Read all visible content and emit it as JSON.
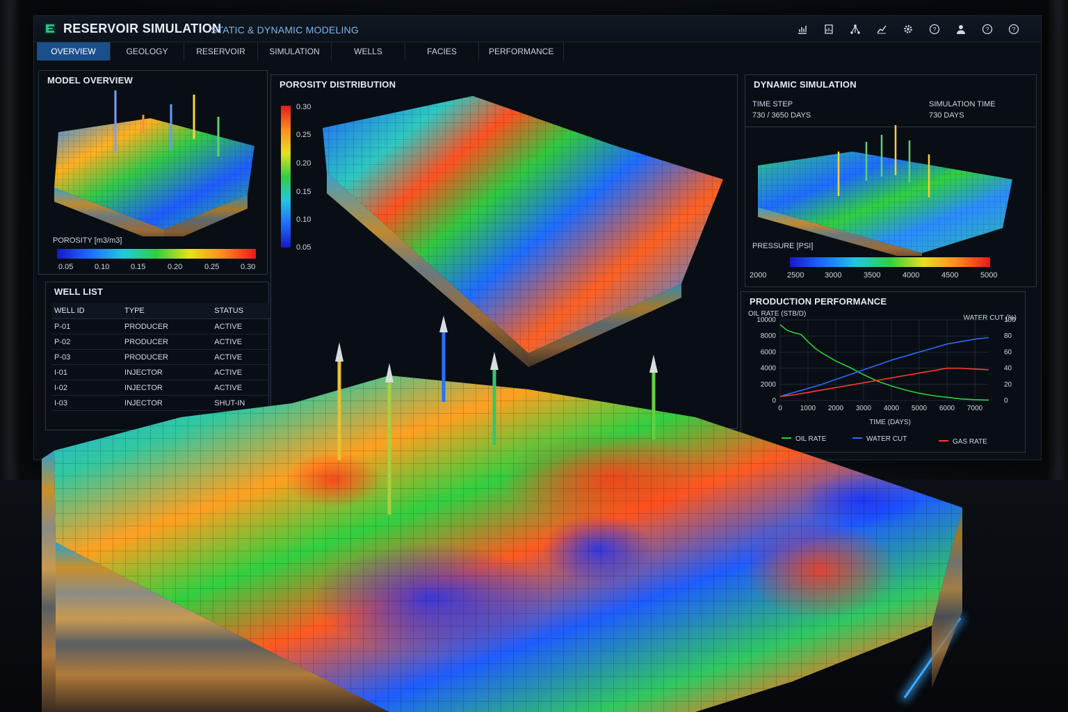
{
  "app": {
    "title": "RESERVOIR SIMULATION",
    "subtitle": "STATIC & DYNAMIC MODELING",
    "accent": "#1a4f8c"
  },
  "toolbar": {
    "icons": [
      "bar-chart-icon",
      "document-chart-icon",
      "network-icon",
      "line-chart-icon",
      "gear-icon",
      "help-icon",
      "user-icon",
      "help-icon",
      "help-icon"
    ]
  },
  "tabs": [
    {
      "label": "OVERVIEW",
      "active": true
    },
    {
      "label": "GEOLOGY",
      "active": false
    },
    {
      "label": "RESERVOIR",
      "active": false
    },
    {
      "label": "SIMULATION",
      "active": false
    },
    {
      "label": "WELLS",
      "active": false
    },
    {
      "label": "FACIES",
      "active": false
    },
    {
      "label": "PERFORMANCE",
      "active": false
    }
  ],
  "model_overview": {
    "title": "MODEL OVERVIEW",
    "legend_label": "POROSITY [m3/m3]",
    "legend_ticks": [
      "0.05",
      "0.10",
      "0.15",
      "0.20",
      "0.25",
      "0.30"
    ]
  },
  "porosity": {
    "title": "POROSITY DISTRIBUTION",
    "legend_ticks": [
      "0.30",
      "0.25",
      "0.20",
      "0.15",
      "0.10",
      "0.05"
    ]
  },
  "well_list": {
    "title": "WELL LIST",
    "headers": [
      "WELL ID",
      "TYPE",
      "STATUS"
    ],
    "rows": [
      {
        "id": "P-01",
        "type": "PRODUCER",
        "status": "ACTIVE"
      },
      {
        "id": "P-02",
        "type": "PRODUCER",
        "status": "ACTIVE"
      },
      {
        "id": "P-03",
        "type": "PRODUCER",
        "status": "ACTIVE"
      },
      {
        "id": "I-01",
        "type": "INJECTOR",
        "status": "ACTIVE"
      },
      {
        "id": "I-02",
        "type": "INJECTOR",
        "status": "ACTIVE"
      },
      {
        "id": "I-03",
        "type": "INJECTOR",
        "status": "SHUT-IN"
      }
    ],
    "status_colors": {
      "ACTIVE": "#3cd04a",
      "SHUT-IN": "#ff3b2f"
    }
  },
  "dynamic": {
    "title": "DYNAMIC SIMULATION",
    "time_step_label": "TIME STEP",
    "time_step_value": "730 / 3650 DAYS",
    "sim_time_label": "SIMULATION TIME",
    "sim_time_value": "730  DAYS",
    "legend_label": "PRESSURE [PSI]",
    "legend_ticks": [
      "2000",
      "2500",
      "3000",
      "3500",
      "4000",
      "4500",
      "5000"
    ]
  },
  "production": {
    "title": "PRODUCTION PERFORMANCE",
    "ylabel_left": "OIL RATE (STB/D)",
    "ylabel_right": "WATER CUT (%)",
    "xlabel": "TIME (DAYS)",
    "y_ticks_left": [
      "10000",
      "8000",
      "6000",
      "4000",
      "2000",
      "0"
    ],
    "y_ticks_right": [
      "100",
      "80",
      "60",
      "40",
      "20",
      "0"
    ],
    "x_ticks": [
      "0",
      "1000",
      "2000",
      "3000",
      "4000",
      "5000",
      "6000",
      "7000"
    ],
    "legend": [
      "OIL RATE",
      "WATER CUT",
      "GAS RATE"
    ]
  },
  "chart_data": {
    "type": "line",
    "xlabel": "TIME (DAYS)",
    "ylabel": "OIL RATE (STB/D)",
    "y2label": "WATER CUT (%)",
    "xlim": [
      0,
      7500
    ],
    "ylim": [
      0,
      10000
    ],
    "y2lim": [
      0,
      100
    ],
    "legend_position": "bottom",
    "series": [
      {
        "name": "OIL RATE",
        "axis": "left",
        "color": "#2fd13a",
        "x": [
          0,
          250,
          500,
          750,
          1000,
          1250,
          1500,
          2000,
          2500,
          3000,
          3500,
          4000,
          4500,
          5000,
          5500,
          6000,
          6500,
          7000,
          7500
        ],
        "y": [
          9400,
          8700,
          8400,
          8200,
          7300,
          6500,
          5900,
          4900,
          4100,
          3200,
          2400,
          1800,
          1300,
          900,
          600,
          400,
          200,
          100,
          50
        ]
      },
      {
        "name": "WATER CUT",
        "axis": "right",
        "color": "#2f6bff",
        "x": [
          0,
          500,
          1000,
          1500,
          2000,
          2500,
          3000,
          3500,
          4000,
          4500,
          5000,
          5500,
          6000,
          6500,
          7000,
          7500
        ],
        "y": [
          5,
          10,
          15,
          20,
          26,
          32,
          38,
          44,
          50,
          55,
          60,
          65,
          70,
          73,
          76,
          78
        ]
      },
      {
        "name": "GAS RATE",
        "axis": "right",
        "color": "#ff3b2f",
        "x": [
          0,
          500,
          1000,
          1500,
          2000,
          2500,
          3000,
          3500,
          4000,
          4500,
          5000,
          5500,
          6000,
          6500,
          7000,
          7500
        ],
        "y": [
          5,
          7,
          10,
          13,
          16,
          19,
          22,
          25,
          28,
          31,
          34,
          37,
          40,
          40,
          39,
          38
        ]
      }
    ]
  }
}
